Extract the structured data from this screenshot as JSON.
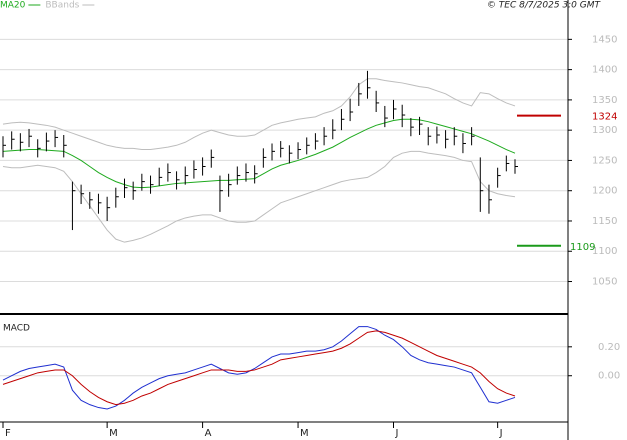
{
  "chart_data": {
    "type": "ohlc",
    "copyright": "© TEC 8/7/2025 3:0 GMT",
    "legend": [
      {
        "name": "MA20",
        "color": "#1faa1f"
      },
      {
        "name": "BBands",
        "color": "#bdbdbd"
      }
    ],
    "categories": [
      "F",
      null,
      null,
      null,
      null,
      null,
      null,
      null,
      null,
      null,
      null,
      null,
      "M",
      null,
      null,
      null,
      null,
      null,
      null,
      null,
      null,
      null,
      null,
      "A",
      null,
      null,
      null,
      null,
      null,
      null,
      null,
      null,
      null,
      null,
      "M",
      null,
      null,
      null,
      null,
      null,
      null,
      null,
      null,
      null,
      null,
      "J",
      null,
      null,
      null,
      null,
      null,
      null,
      null,
      null,
      null,
      null,
      null,
      "J",
      null,
      null
    ],
    "close": [
      1275,
      1285,
      1280,
      1290,
      1270,
      1282,
      1288,
      1275,
      1200,
      1195,
      1185,
      1180,
      1172,
      1190,
      1205,
      1200,
      1215,
      1210,
      1222,
      1230,
      1218,
      1225,
      1235,
      1240,
      1255,
      1200,
      1210,
      1225,
      1230,
      1228,
      1255,
      1265,
      1270,
      1262,
      1268,
      1275,
      1282,
      1290,
      1300,
      1318,
      1330,
      1360,
      1370,
      1345,
      1320,
      1335,
      1325,
      1305,
      1310,
      1290,
      1292,
      1285,
      1290,
      1278,
      1290,
      1200,
      1185,
      1225,
      1245,
      1240
    ],
    "high": [
      1290,
      1298,
      1295,
      1302,
      1285,
      1296,
      1300,
      1292,
      1215,
      1210,
      1198,
      1195,
      1190,
      1205,
      1220,
      1215,
      1228,
      1225,
      1238,
      1245,
      1232,
      1240,
      1250,
      1255,
      1268,
      1225,
      1228,
      1240,
      1245,
      1242,
      1270,
      1278,
      1282,
      1275,
      1280,
      1288,
      1295,
      1305,
      1318,
      1335,
      1352,
      1378,
      1398,
      1365,
      1340,
      1350,
      1342,
      1320,
      1322,
      1305,
      1306,
      1300,
      1305,
      1295,
      1305,
      1255,
      1210,
      1238,
      1258,
      1252
    ],
    "low": [
      1255,
      1268,
      1265,
      1272,
      1255,
      1265,
      1272,
      1255,
      1135,
      1178,
      1170,
      1162,
      1150,
      1172,
      1188,
      1185,
      1200,
      1195,
      1208,
      1215,
      1202,
      1210,
      1220,
      1225,
      1238,
      1165,
      1190,
      1210,
      1215,
      1212,
      1238,
      1250,
      1255,
      1245,
      1252,
      1260,
      1268,
      1275,
      1285,
      1300,
      1315,
      1340,
      1352,
      1330,
      1305,
      1318,
      1305,
      1290,
      1292,
      1275,
      1278,
      1270,
      1275,
      1262,
      1275,
      1165,
      1162,
      1205,
      1232,
      1228
    ],
    "ma20": [
      1265,
      1266,
      1267,
      1268,
      1268,
      1267,
      1266,
      1265,
      1258,
      1250,
      1240,
      1230,
      1222,
      1215,
      1210,
      1206,
      1205,
      1206,
      1208,
      1210,
      1212,
      1213,
      1214,
      1215,
      1216,
      1217,
      1217,
      1218,
      1219,
      1220,
      1228,
      1236,
      1242,
      1246,
      1250,
      1255,
      1260,
      1266,
      1272,
      1280,
      1288,
      1295,
      1302,
      1308,
      1312,
      1316,
      1318,
      1318,
      1317,
      1314,
      1310,
      1306,
      1302,
      1298,
      1294,
      1288,
      1282,
      1275,
      1268,
      1262
    ],
    "bb_upper": [
      1310,
      1312,
      1313,
      1312,
      1310,
      1308,
      1305,
      1300,
      1295,
      1290,
      1285,
      1280,
      1275,
      1272,
      1270,
      1270,
      1268,
      1268,
      1270,
      1272,
      1275,
      1280,
      1288,
      1295,
      1300,
      1296,
      1292,
      1290,
      1290,
      1292,
      1300,
      1308,
      1312,
      1315,
      1318,
      1320,
      1322,
      1328,
      1332,
      1340,
      1355,
      1375,
      1385,
      1385,
      1382,
      1380,
      1378,
      1375,
      1372,
      1370,
      1365,
      1360,
      1352,
      1345,
      1340,
      1362,
      1360,
      1352,
      1345,
      1340
    ],
    "bb_lower": [
      1240,
      1238,
      1238,
      1240,
      1242,
      1240,
      1238,
      1232,
      1215,
      1195,
      1175,
      1155,
      1135,
      1120,
      1115,
      1118,
      1122,
      1128,
      1135,
      1142,
      1150,
      1155,
      1158,
      1160,
      1160,
      1155,
      1150,
      1148,
      1148,
      1150,
      1160,
      1170,
      1180,
      1185,
      1190,
      1195,
      1200,
      1205,
      1210,
      1215,
      1218,
      1220,
      1222,
      1230,
      1240,
      1255,
      1262,
      1265,
      1265,
      1262,
      1260,
      1258,
      1255,
      1250,
      1248,
      1215,
      1200,
      1195,
      1192,
      1190
    ],
    "ylim": [
      998,
      1515
    ],
    "yticks": [
      1050,
      1100,
      1150,
      1200,
      1250,
      1300,
      1350,
      1400,
      1450
    ],
    "levels": [
      {
        "value": 1324,
        "color": "#c00000"
      },
      {
        "value": 1109,
        "color": "#1a9a1a"
      }
    ],
    "macd_title": "MACD",
    "macd": [
      -0.03,
      0.0,
      0.03,
      0.05,
      0.06,
      0.07,
      0.08,
      0.06,
      -0.1,
      -0.17,
      -0.2,
      -0.22,
      -0.23,
      -0.21,
      -0.17,
      -0.12,
      -0.08,
      -0.05,
      -0.02,
      0.0,
      0.01,
      0.02,
      0.04,
      0.06,
      0.08,
      0.05,
      0.02,
      0.01,
      0.02,
      0.05,
      0.09,
      0.13,
      0.15,
      0.15,
      0.16,
      0.17,
      0.17,
      0.18,
      0.2,
      0.24,
      0.29,
      0.34,
      0.34,
      0.32,
      0.28,
      0.25,
      0.2,
      0.14,
      0.11,
      0.09,
      0.08,
      0.07,
      0.06,
      0.04,
      0.02,
      -0.08,
      -0.18,
      -0.19,
      -0.17,
      -0.15
    ],
    "signal": [
      -0.06,
      -0.04,
      -0.02,
      0.0,
      0.02,
      0.03,
      0.04,
      0.04,
      0.0,
      -0.06,
      -0.11,
      -0.15,
      -0.18,
      -0.2,
      -0.19,
      -0.17,
      -0.14,
      -0.12,
      -0.09,
      -0.06,
      -0.04,
      -0.02,
      0.0,
      0.02,
      0.04,
      0.04,
      0.04,
      0.03,
      0.03,
      0.04,
      0.06,
      0.08,
      0.11,
      0.12,
      0.13,
      0.14,
      0.15,
      0.16,
      0.17,
      0.19,
      0.22,
      0.26,
      0.3,
      0.31,
      0.3,
      0.28,
      0.26,
      0.23,
      0.2,
      0.17,
      0.14,
      0.12,
      0.1,
      0.08,
      0.06,
      0.02,
      -0.04,
      -0.09,
      -0.12,
      -0.14
    ],
    "macd_color": "#1f2fd0",
    "signal_color": "#c00000",
    "y2lim": [
      -0.32,
      0.42
    ],
    "y2ticks": [
      {
        "value": 0,
        "label": "0.00"
      },
      {
        "value": 0.2,
        "label": "0.20"
      }
    ]
  }
}
